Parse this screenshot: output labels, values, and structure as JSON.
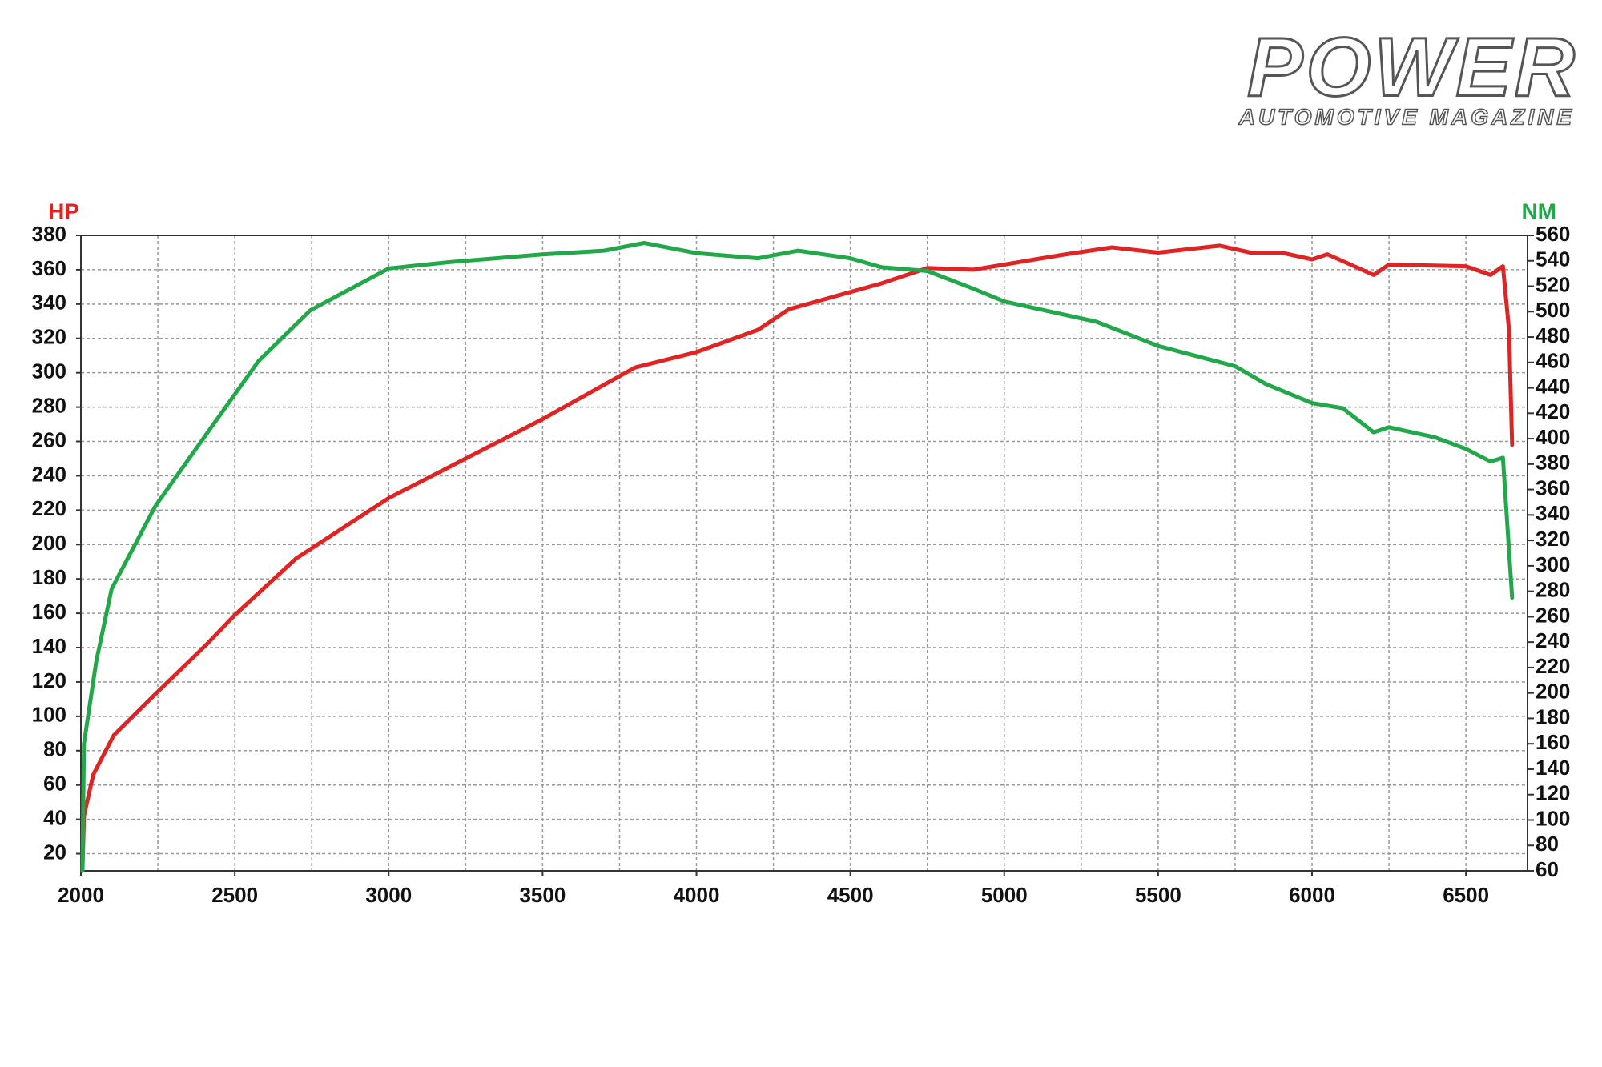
{
  "chart_data": {
    "type": "line",
    "logo": {
      "title": "POWER",
      "subtitle": "AUTOMOTIVE MAGAZINE"
    },
    "xlim": [
      2000,
      6700
    ],
    "xticks": [
      2000,
      2500,
      3000,
      3500,
      4000,
      4500,
      5000,
      5500,
      6000,
      6500
    ],
    "minor_xticks": [
      2250,
      2750,
      3250,
      3750,
      4250,
      4750,
      5250,
      5750,
      6250
    ],
    "ylim": [
      10,
      380
    ],
    "yticks": [
      20,
      40,
      60,
      80,
      100,
      120,
      140,
      160,
      180,
      200,
      220,
      240,
      260,
      280,
      300,
      320,
      340,
      360,
      380
    ],
    "y2lim": [
      60,
      560
    ],
    "y2ticks": [
      60,
      80,
      100,
      120,
      140,
      160,
      180,
      200,
      220,
      240,
      260,
      280,
      300,
      320,
      340,
      360,
      380,
      400,
      420,
      440,
      460,
      480,
      500,
      520,
      540,
      560
    ],
    "grid": true,
    "series": [
      {
        "name": "HP",
        "color": "#e02424",
        "x": [
          2005,
          2010,
          2040,
          2107,
          2242,
          2409,
          2500,
          2700,
          3000,
          3500,
          3800,
          4000,
          4200,
          4300,
          4500,
          4600,
          4750,
          4900,
          5000,
          5100,
          5200,
          5350,
          5500,
          5700,
          5800,
          5900,
          6000,
          6050,
          6200,
          6250,
          6500,
          6580,
          6620,
          6640,
          6650
        ],
        "values": [
          10,
          42,
          66,
          89,
          113,
          142,
          159,
          192,
          227,
          273,
          303,
          312,
          325,
          337,
          347,
          352,
          361,
          360,
          363,
          366,
          369,
          373,
          370,
          374,
          370,
          370,
          366,
          369,
          357,
          363,
          362,
          357,
          362,
          325,
          258
        ]
      },
      {
        "name": "NM",
        "color": "#22a84a",
        "axis": "y2",
        "x": [
          2005,
          2010,
          2050,
          2100,
          2242,
          2409,
          2577,
          2745,
          3000,
          3200,
          3500,
          3700,
          3830,
          4000,
          4200,
          4330,
          4500,
          4600,
          4750,
          4900,
          5000,
          5150,
          5300,
          5500,
          5750,
          5850,
          6000,
          6100,
          6200,
          6250,
          6400,
          6500,
          6580,
          6620,
          6650
        ],
        "values": [
          60,
          160,
          225,
          282,
          347,
          404,
          461,
          501,
          534,
          539,
          545,
          548,
          554,
          546,
          542,
          548,
          542,
          535,
          532,
          518,
          508,
          500,
          492,
          473,
          457,
          443,
          428,
          424,
          405,
          409,
          401,
          392,
          382,
          385,
          275
        ]
      }
    ]
  }
}
